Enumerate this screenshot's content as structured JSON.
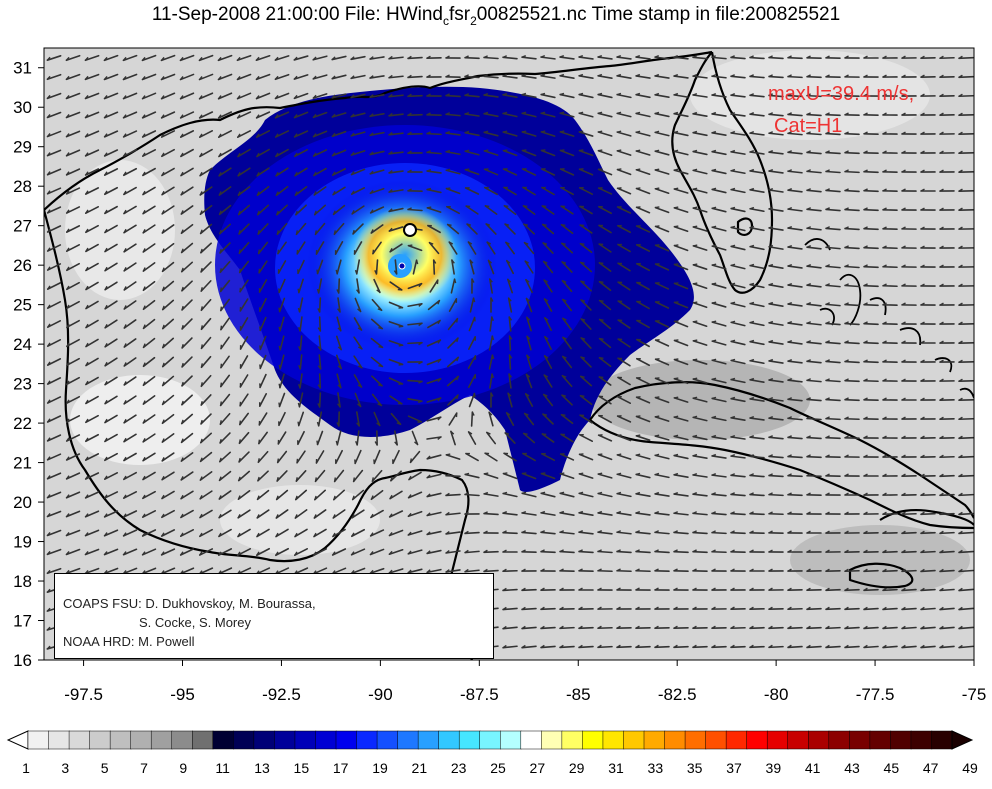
{
  "title": {
    "prefix": "11-Sep-2008 21:00:00 File: HWind",
    "subscript": "c",
    "suffix": "fsr",
    "subscript2": "2",
    "rest": "00825521.nc Time stamp in file:200825521"
  },
  "annotation": {
    "line1": "maxU=39.4 m/s,",
    "line2": "Cat=H1"
  },
  "credits": {
    "line1": "COAPS FSU: D. Dukhovskoy, M. Bourassa,",
    "line2": "S. Cocke, S. Morey",
    "line3": "NOAA HRD:  M. Powell"
  },
  "colors": {
    "annotation": "#ee3333",
    "land_outline": "#000000",
    "ocean_background": "#d9d9d9"
  },
  "chart_data": {
    "type": "heatmap",
    "xlim": [
      -98.5,
      -75
    ],
    "ylim": [
      16,
      31.5
    ],
    "x_ticks": [
      "-97.5",
      "-95",
      "-92.5",
      "-90",
      "-87.5",
      "-85",
      "-82.5",
      "-80",
      "-77.5",
      "-75"
    ],
    "x_tick_values": [
      -97.5,
      -95,
      -92.5,
      -90,
      -87.5,
      -85,
      -82.5,
      -80,
      -77.5,
      -75
    ],
    "y_ticks": [
      "16",
      "17",
      "18",
      "19",
      "20",
      "21",
      "22",
      "23",
      "24",
      "25",
      "26",
      "27",
      "28",
      "29",
      "30",
      "31"
    ],
    "y_tick_values": [
      16,
      17,
      18,
      19,
      20,
      21,
      22,
      23,
      24,
      25,
      26,
      27,
      28,
      29,
      30,
      31
    ],
    "storm_center": {
      "lon": -89.3,
      "lat": 26.0
    },
    "track_marker": {
      "lon": -89.0,
      "lat": 26.9
    },
    "max_wind_ms": 39.4,
    "category": "H1",
    "colorbar": {
      "labels": [
        "1",
        "3",
        "5",
        "7",
        "9",
        "11",
        "13",
        "15",
        "17",
        "19",
        "21",
        "23",
        "25",
        "27",
        "29",
        "31",
        "33",
        "35",
        "37",
        "39",
        "41",
        "43",
        "45",
        "47",
        "49"
      ],
      "label_values": [
        1,
        3,
        5,
        7,
        9,
        11,
        13,
        15,
        17,
        19,
        21,
        23,
        25,
        27,
        29,
        31,
        33,
        35,
        37,
        39,
        41,
        43,
        45,
        47,
        49
      ],
      "colors": [
        "#f2f2f2",
        "#e6e6e6",
        "#d9d9d9",
        "#cccccc",
        "#bfbfbf",
        "#b0b0b0",
        "#a0a0a0",
        "#8c8c8c",
        "#707070",
        "#000033",
        "#000055",
        "#000077",
        "#00009a",
        "#0000b8",
        "#0000d4",
        "#0000ee",
        "#0a28ff",
        "#1450ff",
        "#1e78ff",
        "#28a0ff",
        "#32c8ff",
        "#46e6ff",
        "#78f5ff",
        "#b4ffff",
        "#ffffff",
        "#ffffb4",
        "#ffff64",
        "#ffff00",
        "#ffe600",
        "#ffc800",
        "#ffaa00",
        "#ff8c00",
        "#ff6e00",
        "#ff5000",
        "#ff2800",
        "#ff0000",
        "#e60000",
        "#c80000",
        "#aa0000",
        "#8c0000",
        "#780000",
        "#640000",
        "#500000",
        "#3c0000",
        "#280000"
      ]
    }
  }
}
